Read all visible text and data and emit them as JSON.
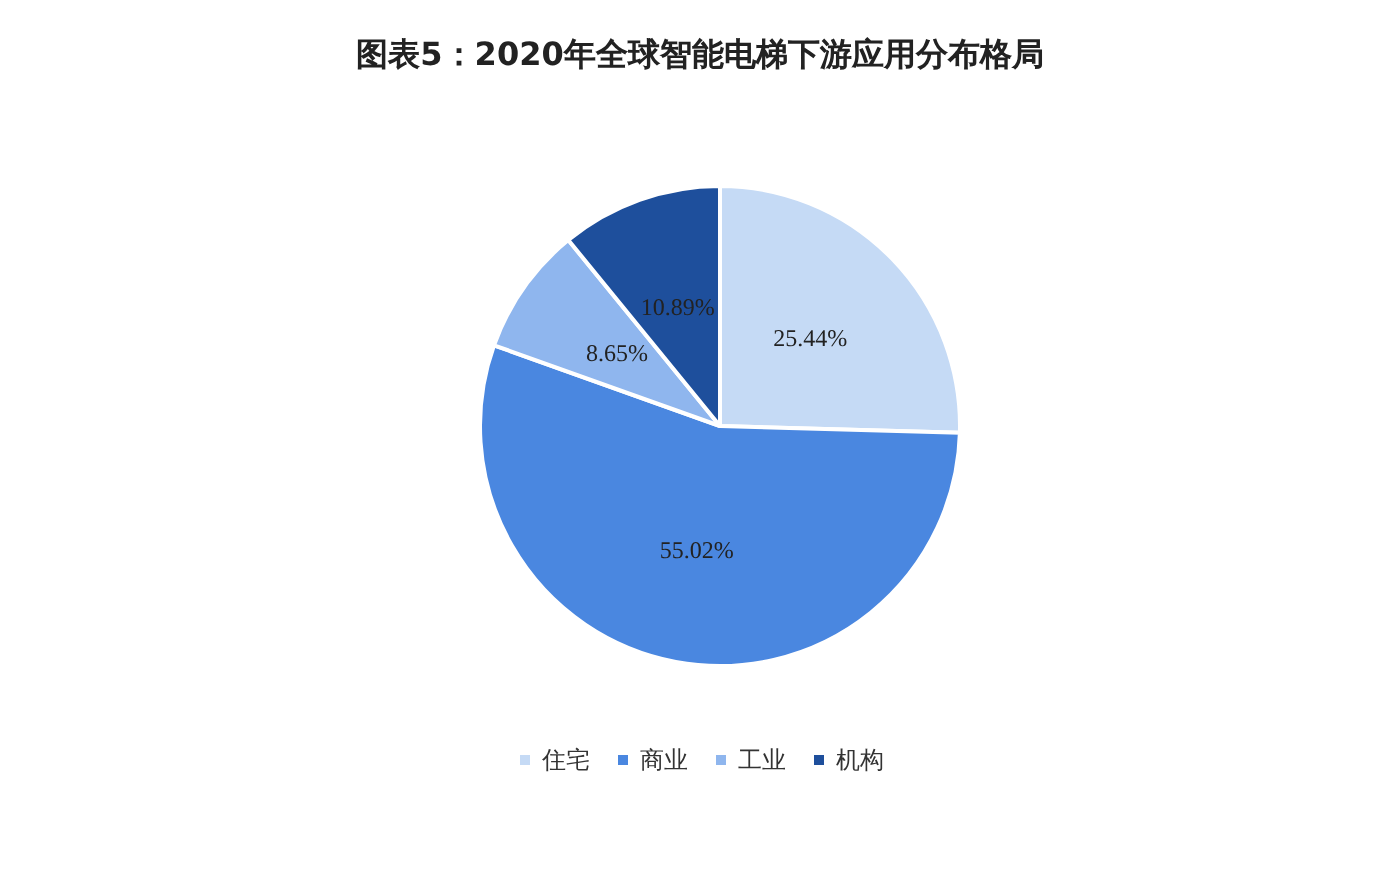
{
  "chart_data": {
    "type": "pie",
    "title": "图表5：2020年全球智能电梯下游应用分布格局",
    "categories": [
      "住宅",
      "商业",
      "工业",
      "机构"
    ],
    "values": [
      25.44,
      55.02,
      8.65,
      10.89
    ],
    "colors": [
      "#c5daf5",
      "#4a87e0",
      "#8fb6ee",
      "#1e4f9c"
    ],
    "value_labels": [
      "25.44%",
      "55.02%",
      "8.65%",
      "10.89%"
    ],
    "legend": "bottom"
  }
}
